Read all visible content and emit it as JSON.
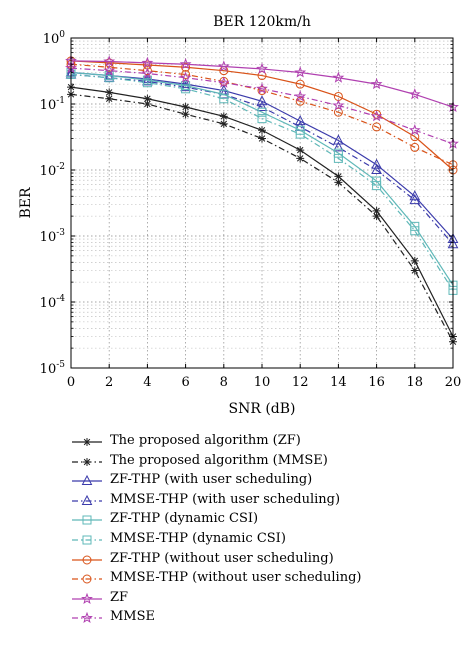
{
  "chart_data": {
    "type": "line",
    "title": "BER 120km/h",
    "xlabel": "SNR (dB)",
    "ylabel": "BER",
    "x": [
      0,
      2,
      4,
      6,
      8,
      10,
      12,
      14,
      16,
      18,
      20
    ],
    "xlim": [
      0,
      20
    ],
    "ylim": [
      1e-05,
      1
    ],
    "yscale": "log",
    "x_ticks": [
      "0",
      "2",
      "4",
      "6",
      "8",
      "10",
      "12",
      "14",
      "16",
      "18",
      "20"
    ],
    "y_ticks": [
      {
        "base": "10",
        "exp": "-5"
      },
      {
        "base": "10",
        "exp": "-4"
      },
      {
        "base": "10",
        "exp": "-3"
      },
      {
        "base": "10",
        "exp": "-2"
      },
      {
        "base": "10",
        "exp": "-1"
      },
      {
        "base": "10",
        "exp": "0"
      }
    ],
    "grid": true,
    "legend_position": "below",
    "series": [
      {
        "name": "The proposed algorithm (ZF)",
        "color": "#222222",
        "linestyle": "solid",
        "marker": "asterisk",
        "values": [
          0.18,
          0.15,
          0.12,
          0.09,
          0.065,
          0.04,
          0.02,
          0.008,
          0.0024,
          0.00042,
          3e-05
        ]
      },
      {
        "name": "The proposed algorithm (MMSE)",
        "color": "#222222",
        "linestyle": "dashdot",
        "marker": "asterisk",
        "values": [
          0.14,
          0.12,
          0.1,
          0.07,
          0.05,
          0.03,
          0.015,
          0.0065,
          0.002,
          0.0003,
          2.5e-05
        ]
      },
      {
        "name": "ZF-THP (with user scheduling)",
        "color": "#3b3bab",
        "linestyle": "solid",
        "marker": "triangle",
        "values": [
          0.3,
          0.27,
          0.24,
          0.2,
          0.16,
          0.11,
          0.055,
          0.028,
          0.012,
          0.004,
          0.0009
        ]
      },
      {
        "name": "MMSE-THP (with user scheduling)",
        "color": "#3b3bab",
        "linestyle": "dashdot",
        "marker": "triangle",
        "values": [
          0.28,
          0.25,
          0.22,
          0.18,
          0.14,
          0.09,
          0.045,
          0.022,
          0.01,
          0.0035,
          0.00075
        ]
      },
      {
        "name": "ZF-THP (dynamic CSI)",
        "color": "#5fb8b8",
        "linestyle": "solid",
        "marker": "square",
        "values": [
          0.3,
          0.27,
          0.23,
          0.19,
          0.14,
          0.075,
          0.04,
          0.018,
          0.0068,
          0.0014,
          0.00018
        ]
      },
      {
        "name": "MMSE-THP (dynamic CSI)",
        "color": "#5fb8b8",
        "linestyle": "dashdot",
        "marker": "square",
        "values": [
          0.28,
          0.25,
          0.21,
          0.17,
          0.12,
          0.06,
          0.035,
          0.015,
          0.0058,
          0.0012,
          0.00015
        ]
      },
      {
        "name": "ZF-THP (without user scheduling)",
        "color": "#d95319",
        "linestyle": "solid",
        "marker": "circle",
        "values": [
          0.45,
          0.42,
          0.39,
          0.36,
          0.32,
          0.27,
          0.2,
          0.13,
          0.07,
          0.032,
          0.01
        ]
      },
      {
        "name": "MMSE-THP (without user scheduling)",
        "color": "#d95319",
        "linestyle": "dashdot",
        "marker": "circle",
        "values": [
          0.4,
          0.36,
          0.32,
          0.28,
          0.22,
          0.16,
          0.11,
          0.075,
          0.045,
          0.022,
          0.012
        ]
      },
      {
        "name": "ZF",
        "color": "#b040b0",
        "linestyle": "solid",
        "marker": "star",
        "values": [
          0.45,
          0.44,
          0.42,
          0.4,
          0.37,
          0.34,
          0.3,
          0.25,
          0.2,
          0.14,
          0.09
        ]
      },
      {
        "name": "MMSE",
        "color": "#b040b0",
        "linestyle": "dashdot",
        "marker": "star",
        "values": [
          0.35,
          0.32,
          0.29,
          0.25,
          0.21,
          0.17,
          0.13,
          0.095,
          0.065,
          0.04,
          0.025
        ]
      }
    ]
  }
}
